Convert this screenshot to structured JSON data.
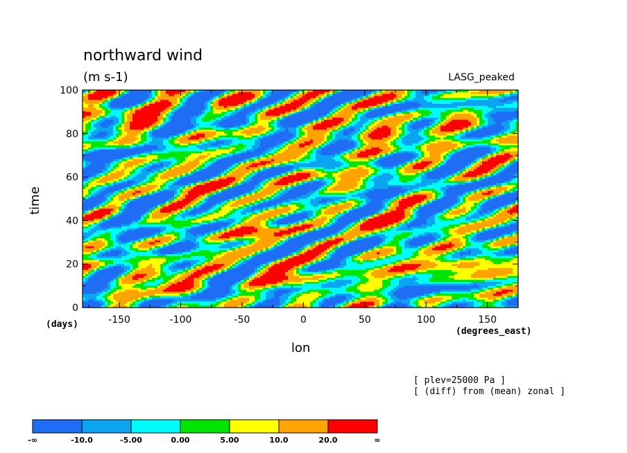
{
  "header": {
    "title": "northward wind",
    "units": "(m s-1)",
    "model": "LASG_peaked"
  },
  "axes": {
    "ylabel": "time",
    "yunit": "(days)",
    "xlabel": "lon",
    "xunit": "(degrees_east)"
  },
  "notes": [
    "[ plev=25000 Pa ]",
    "[ (diff) from (mean) zonal ]"
  ],
  "colors": {
    "levels": [
      "#1f6df5",
      "#0aa4f2",
      "#00fbfb",
      "#00e600",
      "#ffff00",
      "#ffa300",
      "#ff0000"
    ]
  },
  "colorbar": {
    "labels": [
      "-∞",
      "-10.0",
      "-5.00",
      "0.00",
      "5.00",
      "10.0",
      "20.0",
      "∞"
    ]
  },
  "chart_data": {
    "type": "heatmap",
    "title": "northward wind",
    "subtitle": "(m s-1)",
    "xlabel": "lon",
    "ylabel": "time",
    "xlim": [
      -180,
      175
    ],
    "ylim": [
      0,
      100
    ],
    "xticks": [
      -150,
      -100,
      -50,
      0,
      50,
      100,
      150
    ],
    "yticks": [
      0,
      20,
      40,
      60,
      80,
      100
    ],
    "xtick_labels": [
      "-150",
      "-100",
      "-50",
      "0",
      "50",
      "100",
      "150"
    ],
    "ytick_labels": [
      "0",
      "20",
      "40",
      "60",
      "80",
      "100"
    ],
    "color_levels": [
      -10.0,
      -5.0,
      0.0,
      5.0,
      10.0,
      20.0
    ],
    "features": [
      {
        "x": -110,
        "y": 12,
        "value": 22
      },
      {
        "x": -20,
        "y": 15,
        "value": 22
      },
      {
        "x": 80,
        "y": 20,
        "value": 21
      },
      {
        "x": 140,
        "y": 18,
        "value": 18
      },
      {
        "x": -140,
        "y": 88,
        "value": 20
      },
      {
        "x": -55,
        "y": 96,
        "value": 21
      },
      {
        "x": 60,
        "y": 80,
        "value": 20
      },
      {
        "x": 130,
        "y": 85,
        "value": 15
      },
      {
        "x": -40,
        "y": 35,
        "value": 20
      },
      {
        "x": 60,
        "y": 40,
        "value": 18
      },
      {
        "x": -90,
        "y": 55,
        "value": 12
      },
      {
        "x": 10,
        "y": 60,
        "value": 14
      },
      {
        "x": -70,
        "y": 88,
        "value": -14
      },
      {
        "x": -150,
        "y": 50,
        "value": -12
      },
      {
        "x": -130,
        "y": 35,
        "value": -14
      },
      {
        "x": -60,
        "y": 10,
        "value": -12
      },
      {
        "x": 20,
        "y": 50,
        "value": -13
      },
      {
        "x": 150,
        "y": 90,
        "value": -14
      },
      {
        "x": 120,
        "y": 55,
        "value": -11
      },
      {
        "x": 100,
        "y": 8,
        "value": -12
      },
      {
        "x": -160,
        "y": 70,
        "value": -10
      },
      {
        "x": 50,
        "y": 28,
        "value": -11
      }
    ]
  }
}
